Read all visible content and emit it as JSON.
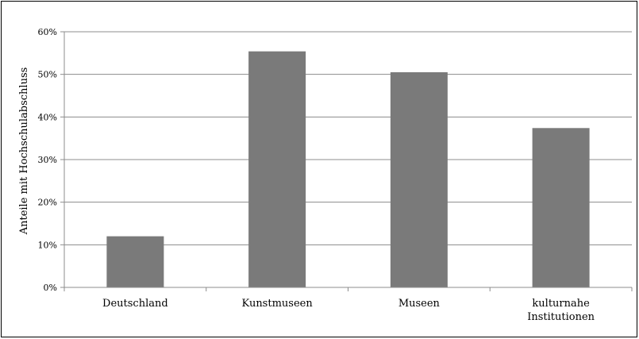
{
  "chart_data": {
    "type": "bar",
    "title": "",
    "xlabel": "",
    "ylabel": "Anteile mit Hochschulabschluss",
    "categories": [
      [
        "Deutschland"
      ],
      [
        "Kunstmuseen"
      ],
      [
        "Museen"
      ],
      [
        "kulturnahe",
        "Institutionen"
      ]
    ],
    "values": [
      0.12,
      0.554,
      0.505,
      0.374
    ],
    "ylim": [
      0,
      0.6
    ],
    "yticks": [
      {
        "value": 0.0,
        "label": "0%"
      },
      {
        "value": 0.1,
        "label": "10%"
      },
      {
        "value": 0.2,
        "label": "20%"
      },
      {
        "value": 0.3,
        "label": "30%"
      },
      {
        "value": 0.4,
        "label": "40%"
      },
      {
        "value": 0.5,
        "label": "50%"
      },
      {
        "value": 0.6,
        "label": "60%"
      }
    ],
    "grid": true,
    "legend": "none",
    "bar_color": "#7a7a7a",
    "grid_color": "#8c8c8c"
  }
}
